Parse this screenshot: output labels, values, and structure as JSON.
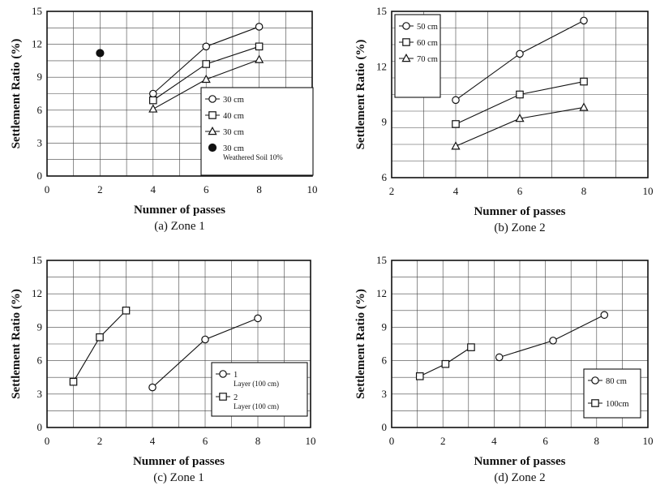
{
  "figure": {
    "panels": [
      "(a) Zone 1",
      "(b) Zone 2",
      "(c) Zone 1",
      "(d) Zone 2"
    ]
  },
  "chart_data": [
    {
      "type": "line",
      "caption": "(a) Zone 1",
      "xlabel": "Numner of passes",
      "ylabel": "Settlement Ratio (%)",
      "xlim": [
        0,
        10
      ],
      "ylim": [
        0,
        15
      ],
      "xticks": [
        0,
        2,
        4,
        6,
        8,
        10
      ],
      "yticks": [
        0,
        3,
        6,
        9,
        12,
        15
      ],
      "grid": true,
      "legend_position": "lower-right",
      "series": [
        {
          "name": "30 cm",
          "marker": "circle",
          "x": [
            4,
            6,
            8
          ],
          "y": [
            7.5,
            11.8,
            13.6
          ]
        },
        {
          "name": "40 cm",
          "marker": "square",
          "x": [
            4,
            6,
            8
          ],
          "y": [
            6.9,
            10.2,
            11.8
          ]
        },
        {
          "name": "30 cm",
          "marker": "triangle",
          "x": [
            4,
            6,
            8
          ],
          "y": [
            6.1,
            8.8,
            10.6
          ]
        },
        {
          "name": "30 cm",
          "subtitle": "Weathered Soil 10%",
          "marker": "filled-circle",
          "x": [
            2
          ],
          "y": [
            11.2
          ]
        }
      ]
    },
    {
      "type": "line",
      "caption": "(b) Zone 2",
      "xlabel": "Numner of passes",
      "ylabel": "Settlement Ratio (%)",
      "xlim": [
        2,
        10
      ],
      "ylim": [
        6,
        15
      ],
      "xticks": [
        2,
        4,
        6,
        8,
        10
      ],
      "yticks": [
        6,
        9,
        12,
        15
      ],
      "grid": true,
      "legend_position": "top-left",
      "series": [
        {
          "name": "50 cm",
          "marker": "circle",
          "x": [
            4,
            6,
            8
          ],
          "y": [
            10.2,
            12.7,
            14.5
          ]
        },
        {
          "name": "60 cm",
          "marker": "square",
          "x": [
            4,
            6,
            8
          ],
          "y": [
            8.9,
            10.5,
            11.2
          ]
        },
        {
          "name": "70 cm",
          "marker": "triangle",
          "x": [
            4,
            6,
            8
          ],
          "y": [
            7.7,
            9.2,
            9.8
          ]
        }
      ]
    },
    {
      "type": "line",
      "caption": "(c) Zone 1",
      "xlabel": "Numner of passes",
      "ylabel": "Settlement Ratio (%)",
      "xlim": [
        0,
        10
      ],
      "ylim": [
        0,
        15
      ],
      "xticks": [
        0,
        2,
        4,
        6,
        8,
        10
      ],
      "yticks": [
        0,
        3,
        6,
        9,
        12,
        15
      ],
      "grid": true,
      "legend_position": "lower-right",
      "series": [
        {
          "name": "1",
          "subtitle": "Layer (100 cm)",
          "marker": "circle",
          "x": [
            4,
            6,
            8
          ],
          "y": [
            3.6,
            7.9,
            9.8
          ]
        },
        {
          "name": "2",
          "subtitle": "Layer (100 cm)",
          "marker": "square",
          "x": [
            1,
            2,
            3
          ],
          "y": [
            4.1,
            8.1,
            10.5
          ]
        }
      ]
    },
    {
      "type": "line",
      "caption": "(d) Zone 2",
      "xlabel": "Numner of passes",
      "ylabel": "Settlement Ratio (%)",
      "xlim": [
        0,
        10
      ],
      "ylim": [
        0,
        15
      ],
      "xticks": [
        0,
        2,
        4,
        6,
        8,
        10
      ],
      "yticks": [
        0,
        3,
        6,
        9,
        12,
        15
      ],
      "grid": true,
      "legend_position": "lower-right",
      "series": [
        {
          "name": "80 cm",
          "marker": "circle",
          "x": [
            4.2,
            6.3,
            8.3
          ],
          "y": [
            6.3,
            7.8,
            10.1
          ]
        },
        {
          "name": "100cm",
          "marker": "square",
          "x": [
            1.1,
            2.1,
            3.1
          ],
          "y": [
            4.6,
            5.7,
            7.2
          ]
        }
      ]
    }
  ]
}
